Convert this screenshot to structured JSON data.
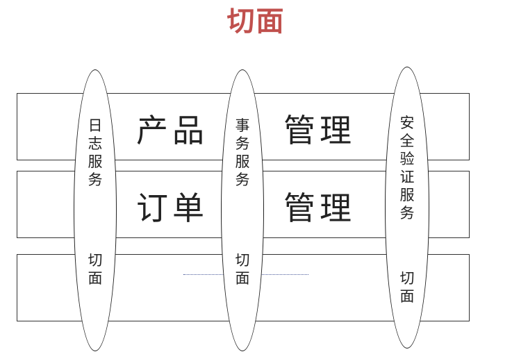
{
  "title": "切面",
  "colors": {
    "title": "#c0504d",
    "line": "#222222",
    "dots": "#4a5a9a"
  },
  "bands": [
    {
      "left": "产品",
      "right": "管理"
    },
    {
      "left": "订单",
      "right": "管理"
    },
    {
      "left": "",
      "right": ""
    }
  ],
  "aspects": [
    {
      "top": "日志服务",
      "bottom": "切面"
    },
    {
      "top": "事务服务",
      "bottom": "切面"
    },
    {
      "top": "安全验证服务",
      "bottom": "切面"
    }
  ]
}
